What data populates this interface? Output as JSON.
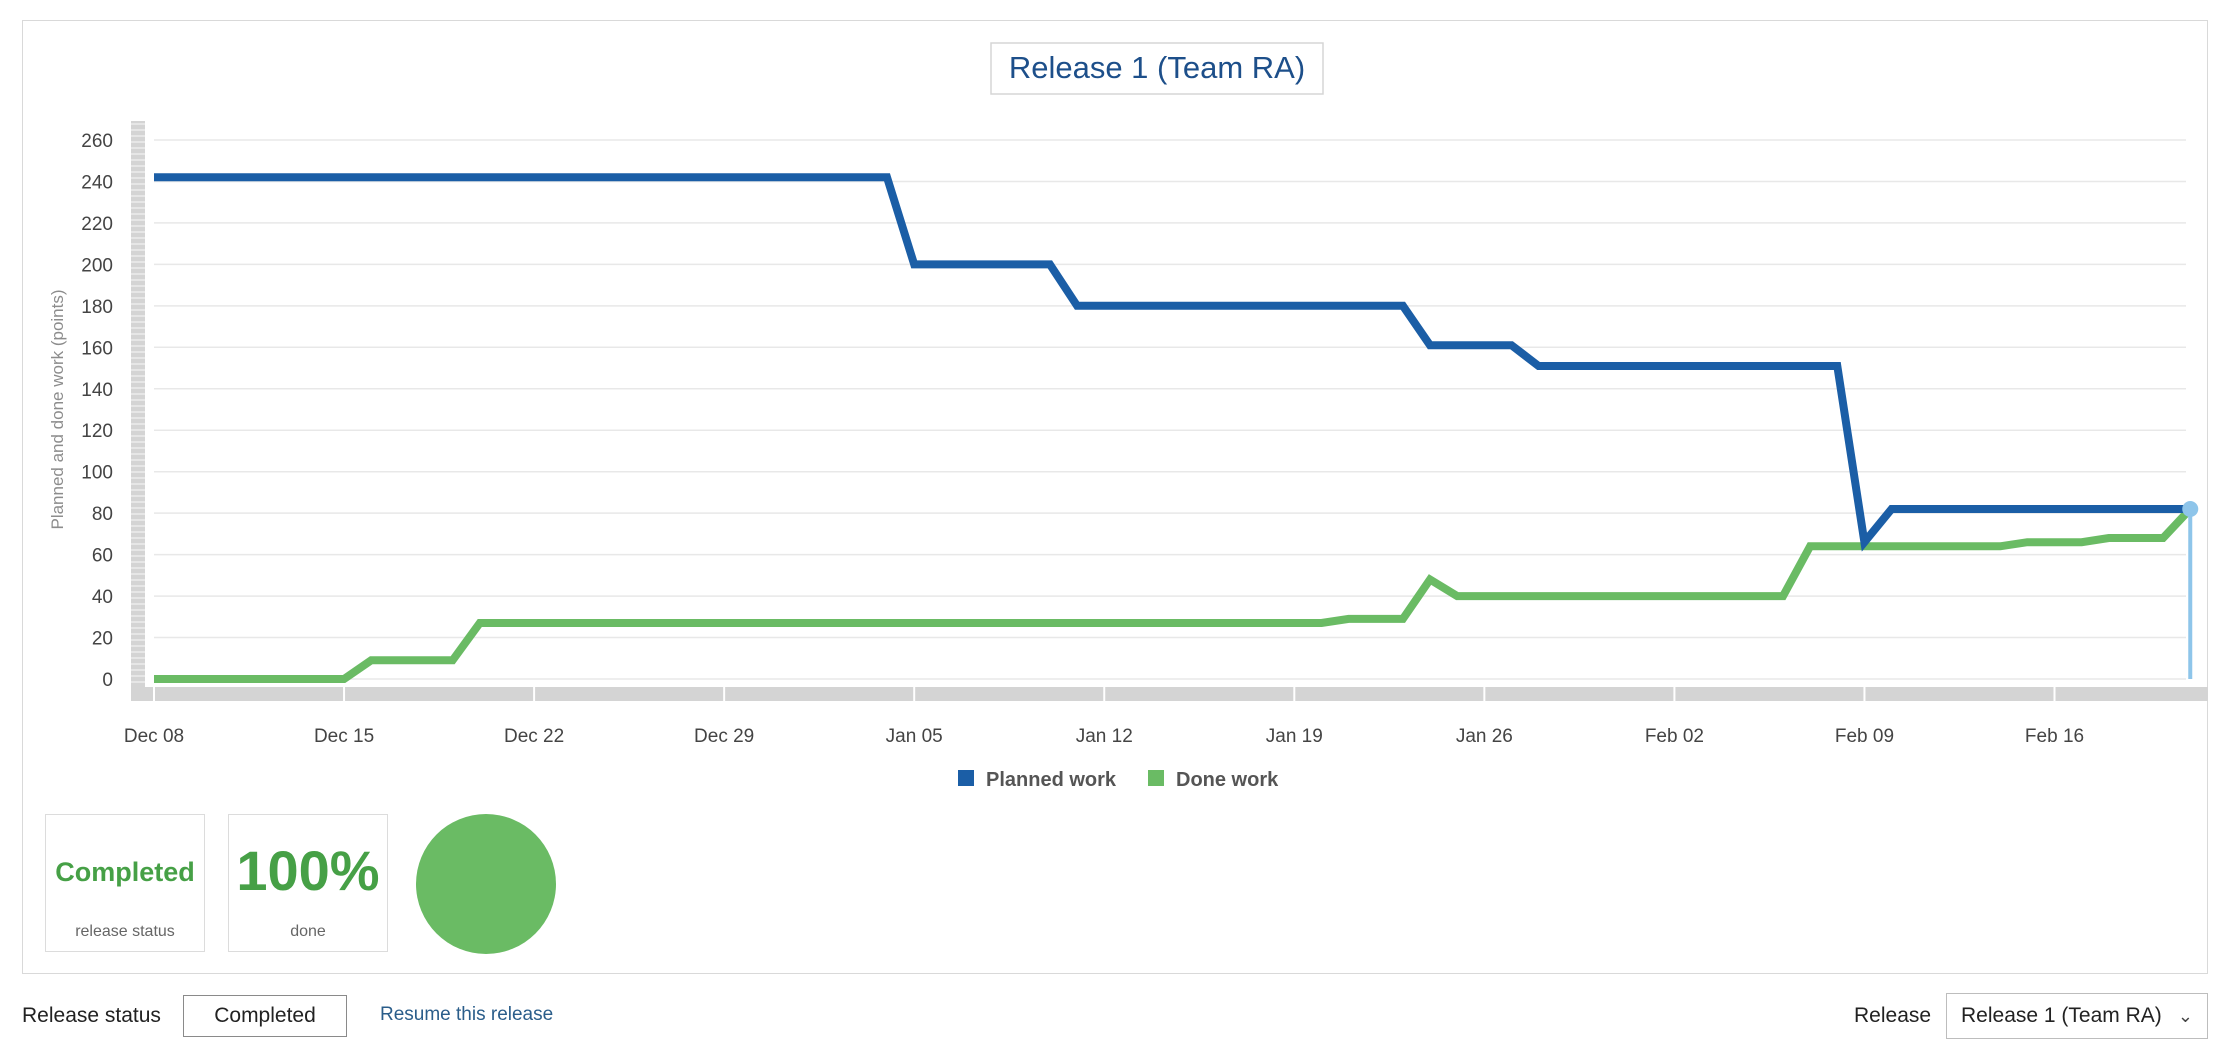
{
  "chart_data": {
    "type": "line",
    "title": "Release 1 (Team RA)",
    "ylabel": "Planned and done work (points)",
    "xlabel": "",
    "ylim": [
      0,
      260
    ],
    "yticks": [
      0,
      20,
      40,
      60,
      80,
      100,
      120,
      140,
      160,
      180,
      200,
      220,
      240,
      260
    ],
    "xticks": [
      "Dec 08",
      "Dec 15",
      "Dec 22",
      "Dec 29",
      "Jan 05",
      "Jan 12",
      "Jan 19",
      "Jan 26",
      "Feb 02",
      "Feb 09",
      "Feb 16"
    ],
    "legend_position": "bottom-center",
    "grid": true,
    "series": [
      {
        "name": "Planned work",
        "color": "#1b5ea6",
        "x": [
          "Dec 08",
          "Jan 04",
          "Jan 05",
          "Jan 10",
          "Jan 11",
          "Jan 23",
          "Jan 24",
          "Jan 27",
          "Jan 28",
          "Feb 08",
          "Feb 09",
          "Feb 10",
          "Feb 21"
        ],
        "values": [
          242,
          242,
          200,
          200,
          180,
          180,
          161,
          161,
          151,
          151,
          66,
          82,
          82
        ]
      },
      {
        "name": "Done work",
        "color": "#6abb64",
        "x": [
          "Dec 08",
          "Dec 15",
          "Dec 16",
          "Dec 19",
          "Dec 20",
          "Jan 20",
          "Jan 21",
          "Jan 23",
          "Jan 24",
          "Jan 25",
          "Feb 06",
          "Feb 07",
          "Feb 14",
          "Feb 15",
          "Feb 17",
          "Feb 18",
          "Feb 20",
          "Feb 21"
        ],
        "values": [
          0,
          0,
          9,
          9,
          27,
          27,
          29,
          29,
          48,
          40,
          40,
          64,
          64,
          66,
          66,
          68,
          68,
          82
        ]
      }
    ]
  },
  "cards": {
    "status_value": "Completed",
    "status_label": "release status",
    "done_value": "100%",
    "done_label": "done"
  },
  "footer": {
    "release_status_label": "Release status",
    "status_button": "Completed",
    "resume_link": "Resume this release",
    "release_label": "Release",
    "release_selected": "Release 1 (Team RA)"
  }
}
